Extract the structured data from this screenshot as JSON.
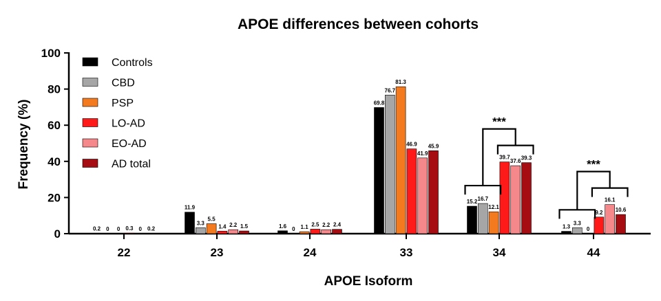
{
  "chart_data": {
    "type": "bar",
    "title": "APOE differences between cohorts",
    "xlabel": "APOE Isoform",
    "ylabel": "Frequency (%)",
    "ylim": [
      0,
      100
    ],
    "yticks": [
      "0",
      "20",
      "40",
      "60",
      "80",
      "100"
    ],
    "categories": [
      "22",
      "23",
      "24",
      "33",
      "34",
      "44"
    ],
    "legend_position": "top-left",
    "series": [
      {
        "name": "Controls",
        "color": "#000000",
        "values": [
          0.2,
          11.9,
          1.6,
          69.8,
          15.2,
          1.3
        ],
        "labels": [
          "0.2",
          "11.9",
          "1.6",
          "69.8",
          "15.2",
          "1.3"
        ]
      },
      {
        "name": "CBD",
        "color": "#a6a6a6",
        "values": [
          0,
          3.3,
          0,
          76.7,
          16.7,
          3.3
        ],
        "labels": [
          "0",
          "3.3",
          "0",
          "76.7",
          "16.7",
          "3.3"
        ]
      },
      {
        "name": "PSP",
        "color": "#f47a1f",
        "values": [
          0,
          5.5,
          1.1,
          81.3,
          12.1,
          0
        ],
        "labels": [
          "0",
          "5.5",
          "1.1",
          "81.3",
          "12.1",
          "0"
        ]
      },
      {
        "name": "LO-AD",
        "color": "#ff1a1a",
        "values": [
          0.3,
          1.4,
          2.5,
          46.9,
          39.7,
          9.2
        ],
        "labels": [
          "0.3",
          "1.4",
          "2.5",
          "46.9",
          "39.7",
          "9.2"
        ]
      },
      {
        "name": "EO-AD",
        "color": "#f4888a",
        "values": [
          0,
          2.2,
          2.2,
          41.9,
          37.6,
          16.1
        ],
        "labels": [
          "0",
          "2.2",
          "2.2",
          "41.9",
          "37.6",
          "16.1"
        ]
      },
      {
        "name": "AD total",
        "color": "#a50d12",
        "values": [
          0.2,
          1.5,
          2.4,
          45.9,
          39.3,
          10.6
        ],
        "labels": [
          "0.2",
          "1.5",
          "2.4",
          "45.9",
          "39.3",
          "10.6"
        ]
      }
    ],
    "significance": [
      {
        "category": "34",
        "label": "***"
      },
      {
        "category": "44",
        "label": "***"
      }
    ]
  }
}
